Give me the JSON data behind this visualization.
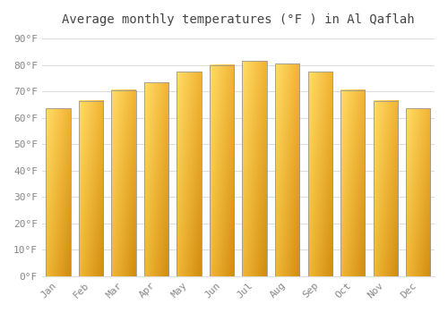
{
  "title": "Average monthly temperatures (°F ) in Al Qaflah",
  "months": [
    "Jan",
    "Feb",
    "Mar",
    "Apr",
    "May",
    "Jun",
    "Jul",
    "Aug",
    "Sep",
    "Oct",
    "Nov",
    "Dec"
  ],
  "values": [
    63.5,
    66.5,
    70.5,
    73.5,
    77.5,
    80.0,
    81.5,
    80.5,
    77.5,
    70.5,
    66.5,
    63.5
  ],
  "bar_color_top": "#FFD966",
  "bar_color_bottom": "#F0A000",
  "bar_color_left": "#FFD060",
  "bar_color_right": "#D08000",
  "bar_edge_color": "#999999",
  "background_color": "#ffffff",
  "grid_color": "#dddddd",
  "text_color": "#888888",
  "title_color": "#444444",
  "yticks": [
    0,
    10,
    20,
    30,
    40,
    50,
    60,
    70,
    80,
    90
  ],
  "ylim": [
    0,
    93
  ],
  "title_fontsize": 10,
  "tick_fontsize": 8,
  "font_family": "monospace",
  "bar_width": 0.75
}
